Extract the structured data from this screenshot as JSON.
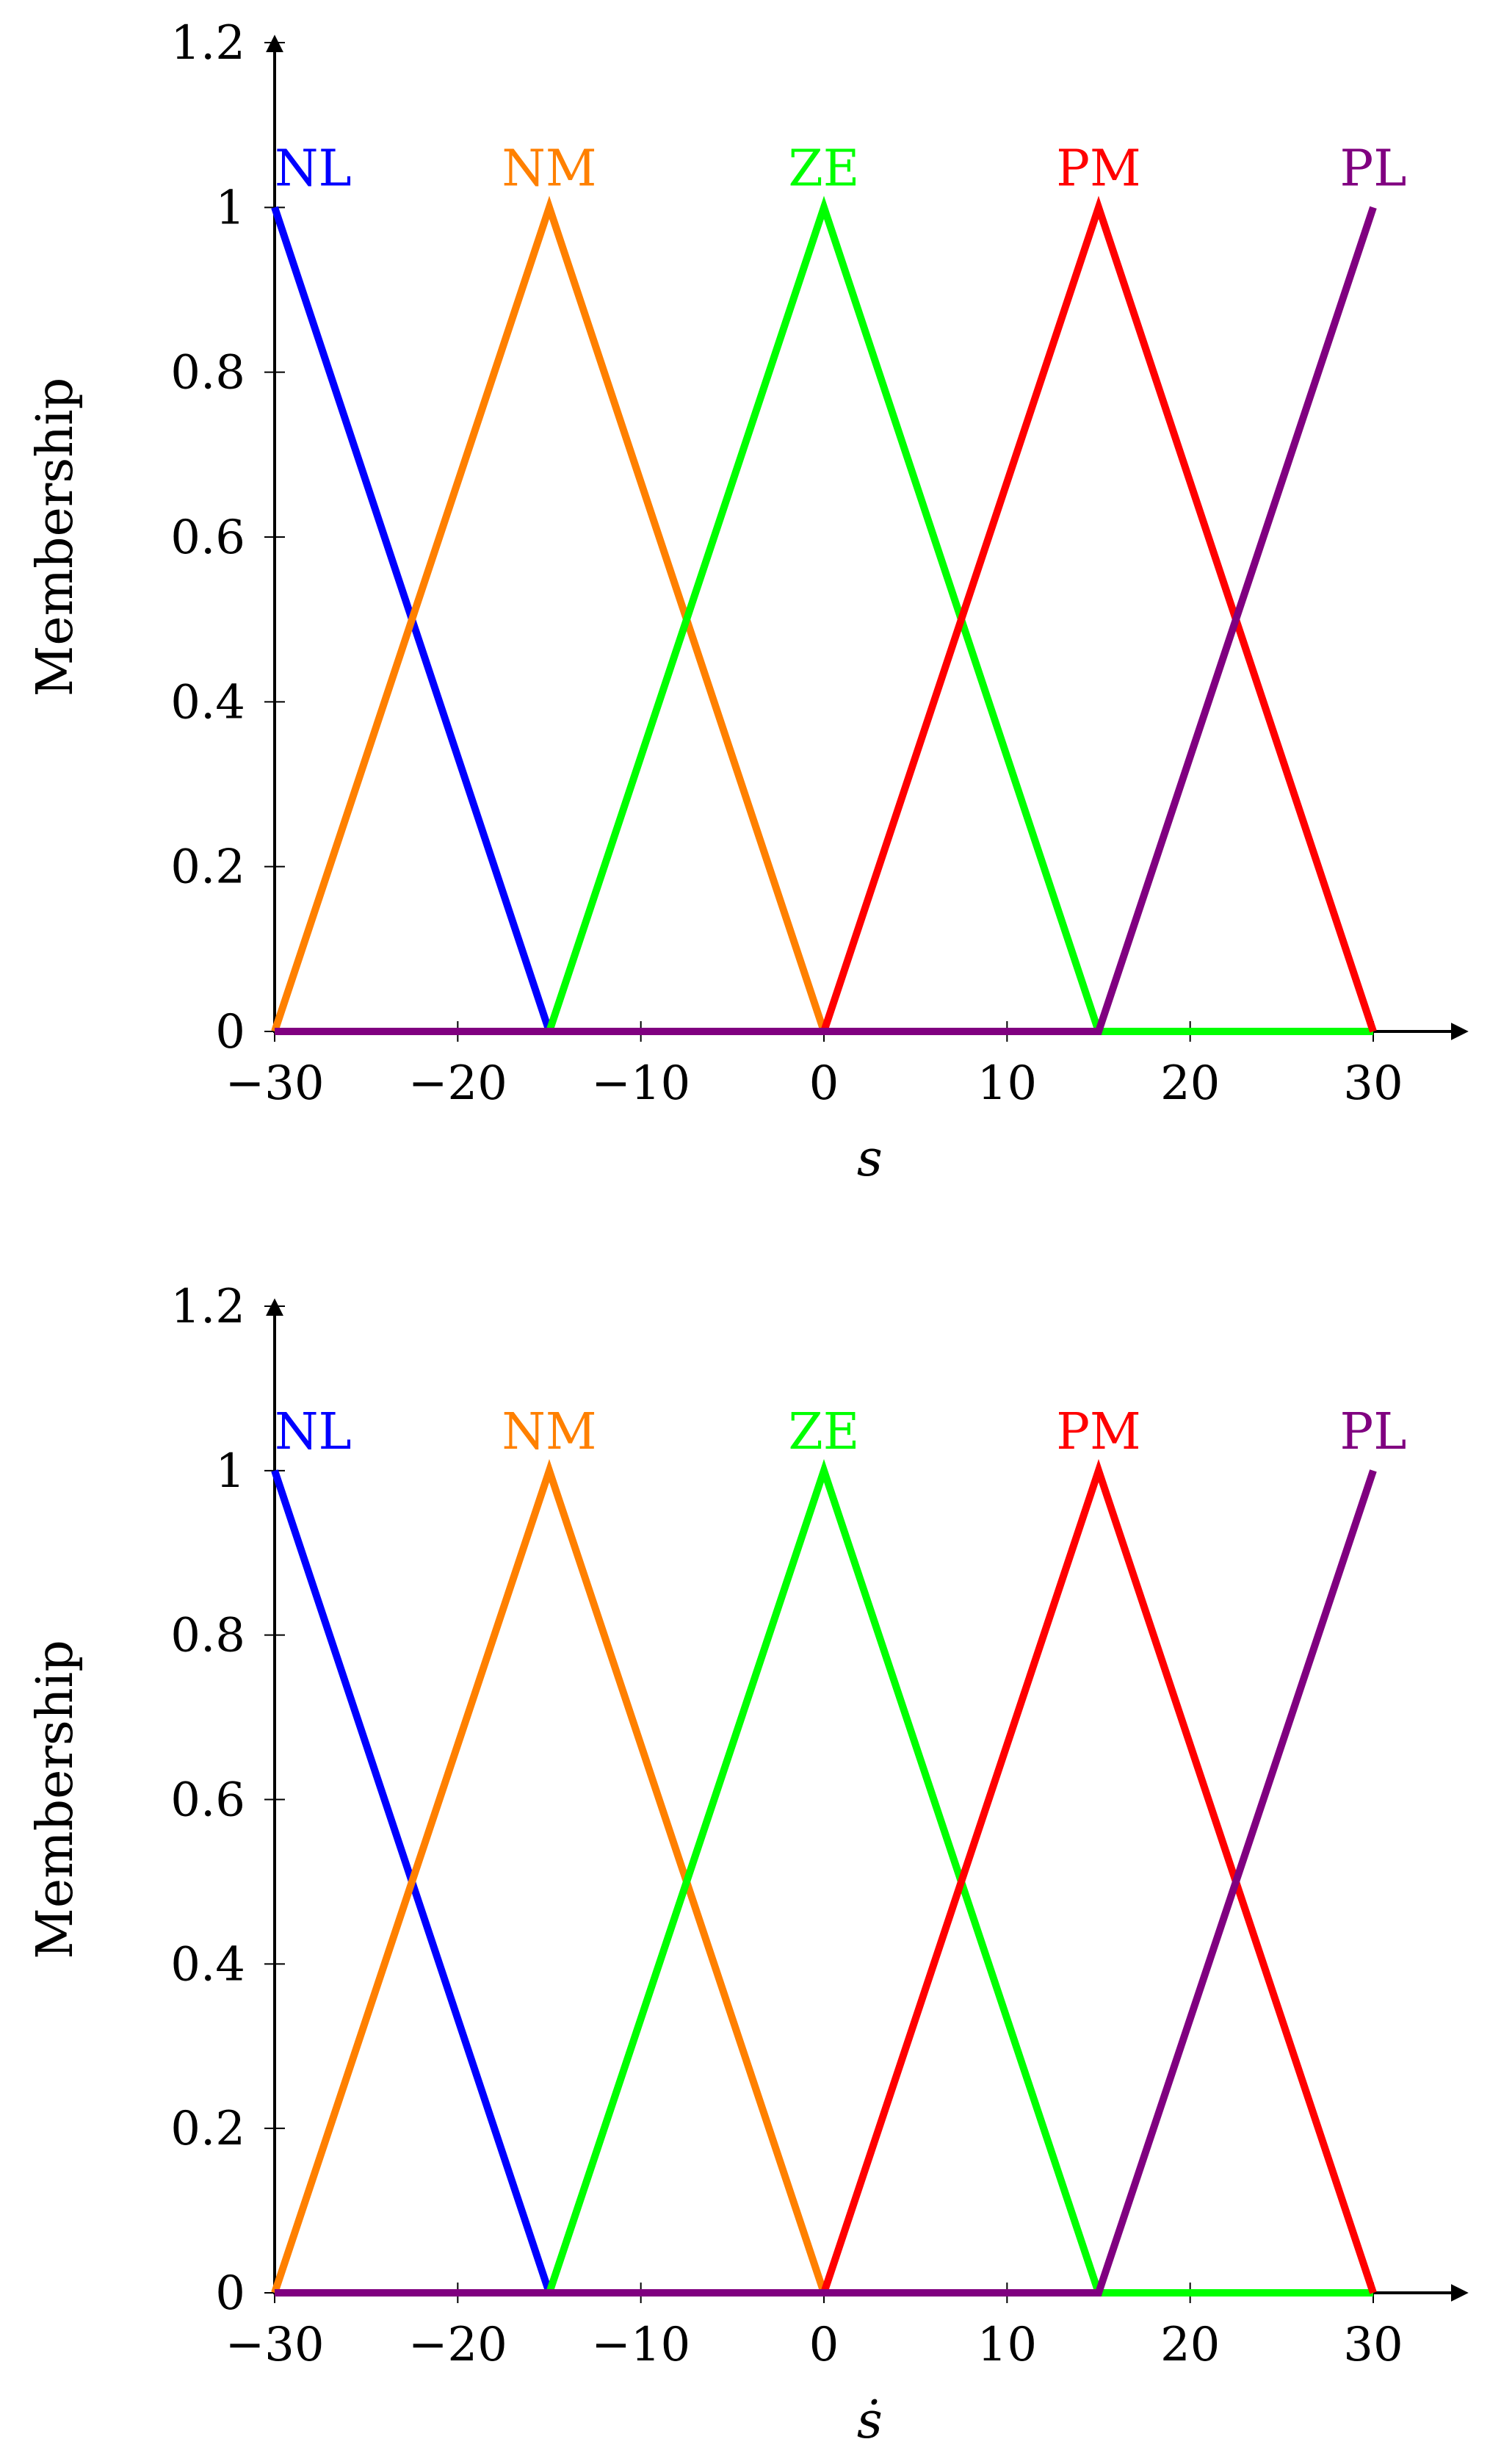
{
  "chart_data": [
    {
      "type": "line",
      "title": "",
      "xlabel": "s",
      "ylabel": "Membership",
      "xlim": [
        -30,
        35
      ],
      "ylim": [
        0,
        1.2
      ],
      "xticks": [
        -30,
        -20,
        -10,
        0,
        10,
        20,
        30
      ],
      "xtick_labels": [
        "−30",
        "−20",
        "−10",
        "0",
        "10",
        "20",
        "30"
      ],
      "yticks": [
        0,
        0.2,
        0.4,
        0.6,
        0.8,
        1,
        1.2
      ],
      "ytick_labels": [
        "0",
        "0.2",
        "0.4",
        "0.6",
        "0.8",
        "1",
        "1.2"
      ],
      "grid": false,
      "series": [
        {
          "name": "NL",
          "color": "#0000ff",
          "x": [
            -30,
            -15,
            30
          ],
          "y": [
            1,
            0,
            0
          ]
        },
        {
          "name": "NM",
          "color": "#ff8000",
          "x": [
            -30,
            -15,
            0,
            30
          ],
          "y": [
            0,
            1,
            0,
            0
          ]
        },
        {
          "name": "ZE",
          "color": "#00ff00",
          "x": [
            -30,
            -15,
            0,
            15,
            30
          ],
          "y": [
            0,
            0,
            1,
            0,
            0
          ]
        },
        {
          "name": "PM",
          "color": "#ff0000",
          "x": [
            -30,
            0,
            15,
            30
          ],
          "y": [
            0,
            0,
            1,
            0
          ]
        },
        {
          "name": "PL",
          "color": "#800080",
          "x": [
            -30,
            15,
            30
          ],
          "y": [
            0,
            0,
            1
          ]
        }
      ]
    },
    {
      "type": "line",
      "title": "",
      "xlabel": "ṡ",
      "ylabel": "Membership",
      "xlim": [
        -30,
        35
      ],
      "ylim": [
        0,
        1.2
      ],
      "xticks": [
        -30,
        -20,
        -10,
        0,
        10,
        20,
        30
      ],
      "xtick_labels": [
        "−30",
        "−20",
        "−10",
        "0",
        "10",
        "20",
        "30"
      ],
      "yticks": [
        0,
        0.2,
        0.4,
        0.6,
        0.8,
        1,
        1.2
      ],
      "ytick_labels": [
        "0",
        "0.2",
        "0.4",
        "0.6",
        "0.8",
        "1",
        "1.2"
      ],
      "grid": false,
      "series": [
        {
          "name": "NL",
          "color": "#0000ff",
          "x": [
            -30,
            -15,
            30
          ],
          "y": [
            1,
            0,
            0
          ]
        },
        {
          "name": "NM",
          "color": "#ff8000",
          "x": [
            -30,
            -15,
            0,
            30
          ],
          "y": [
            0,
            1,
            0,
            0
          ]
        },
        {
          "name": "ZE",
          "color": "#00ff00",
          "x": [
            -30,
            -15,
            0,
            15,
            30
          ],
          "y": [
            0,
            0,
            1,
            0,
            0
          ]
        },
        {
          "name": "PM",
          "color": "#ff0000",
          "x": [
            -30,
            0,
            15,
            30
          ],
          "y": [
            0,
            0,
            1,
            0
          ]
        },
        {
          "name": "PL",
          "color": "#800080",
          "x": [
            -30,
            15,
            30
          ],
          "y": [
            0,
            0,
            1
          ]
        }
      ]
    }
  ]
}
